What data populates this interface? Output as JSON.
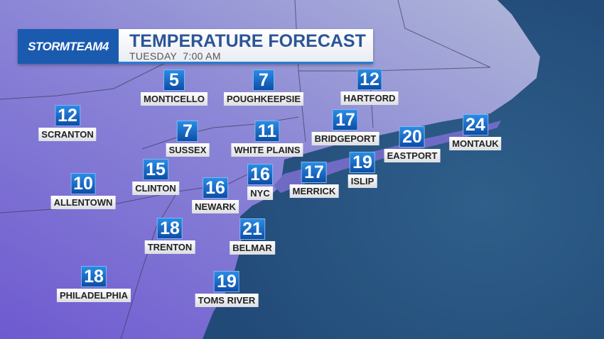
{
  "header": {
    "logo_text": "STORMTEAM4",
    "title": "TEMPERATURE FORECAST",
    "subtitle": "TUESDAY  7:00 AM"
  },
  "colors": {
    "land_west": "#7b6bd6",
    "land_east": "#9aa6d6",
    "ocean": "#2f5a86",
    "temp_box": "#1a6cd0"
  },
  "stations": [
    {
      "name": "MONTICELLO",
      "temp": "5"
    },
    {
      "name": "POUGHKEEPSIE",
      "temp": "7"
    },
    {
      "name": "HARTFORD",
      "temp": "12"
    },
    {
      "name": "SCRANTON",
      "temp": "12"
    },
    {
      "name": "SUSSEX",
      "temp": "7"
    },
    {
      "name": "WHITE PLAINS",
      "temp": "11"
    },
    {
      "name": "BRIDGEPORT",
      "temp": "17"
    },
    {
      "name": "EASTPORT",
      "temp": "20"
    },
    {
      "name": "MONTAUK",
      "temp": "24"
    },
    {
      "name": "CLINTON",
      "temp": "15"
    },
    {
      "name": "ALLENTOWN",
      "temp": "10"
    },
    {
      "name": "NEWARK",
      "temp": "16"
    },
    {
      "name": "NYC",
      "temp": "16"
    },
    {
      "name": "MERRICK",
      "temp": "17"
    },
    {
      "name": "ISLIP",
      "temp": "19"
    },
    {
      "name": "TRENTON",
      "temp": "18"
    },
    {
      "name": "BELMAR",
      "temp": "21"
    },
    {
      "name": "PHILADELPHIA",
      "temp": "18"
    },
    {
      "name": "TOMS RIVER",
      "temp": "19"
    }
  ]
}
